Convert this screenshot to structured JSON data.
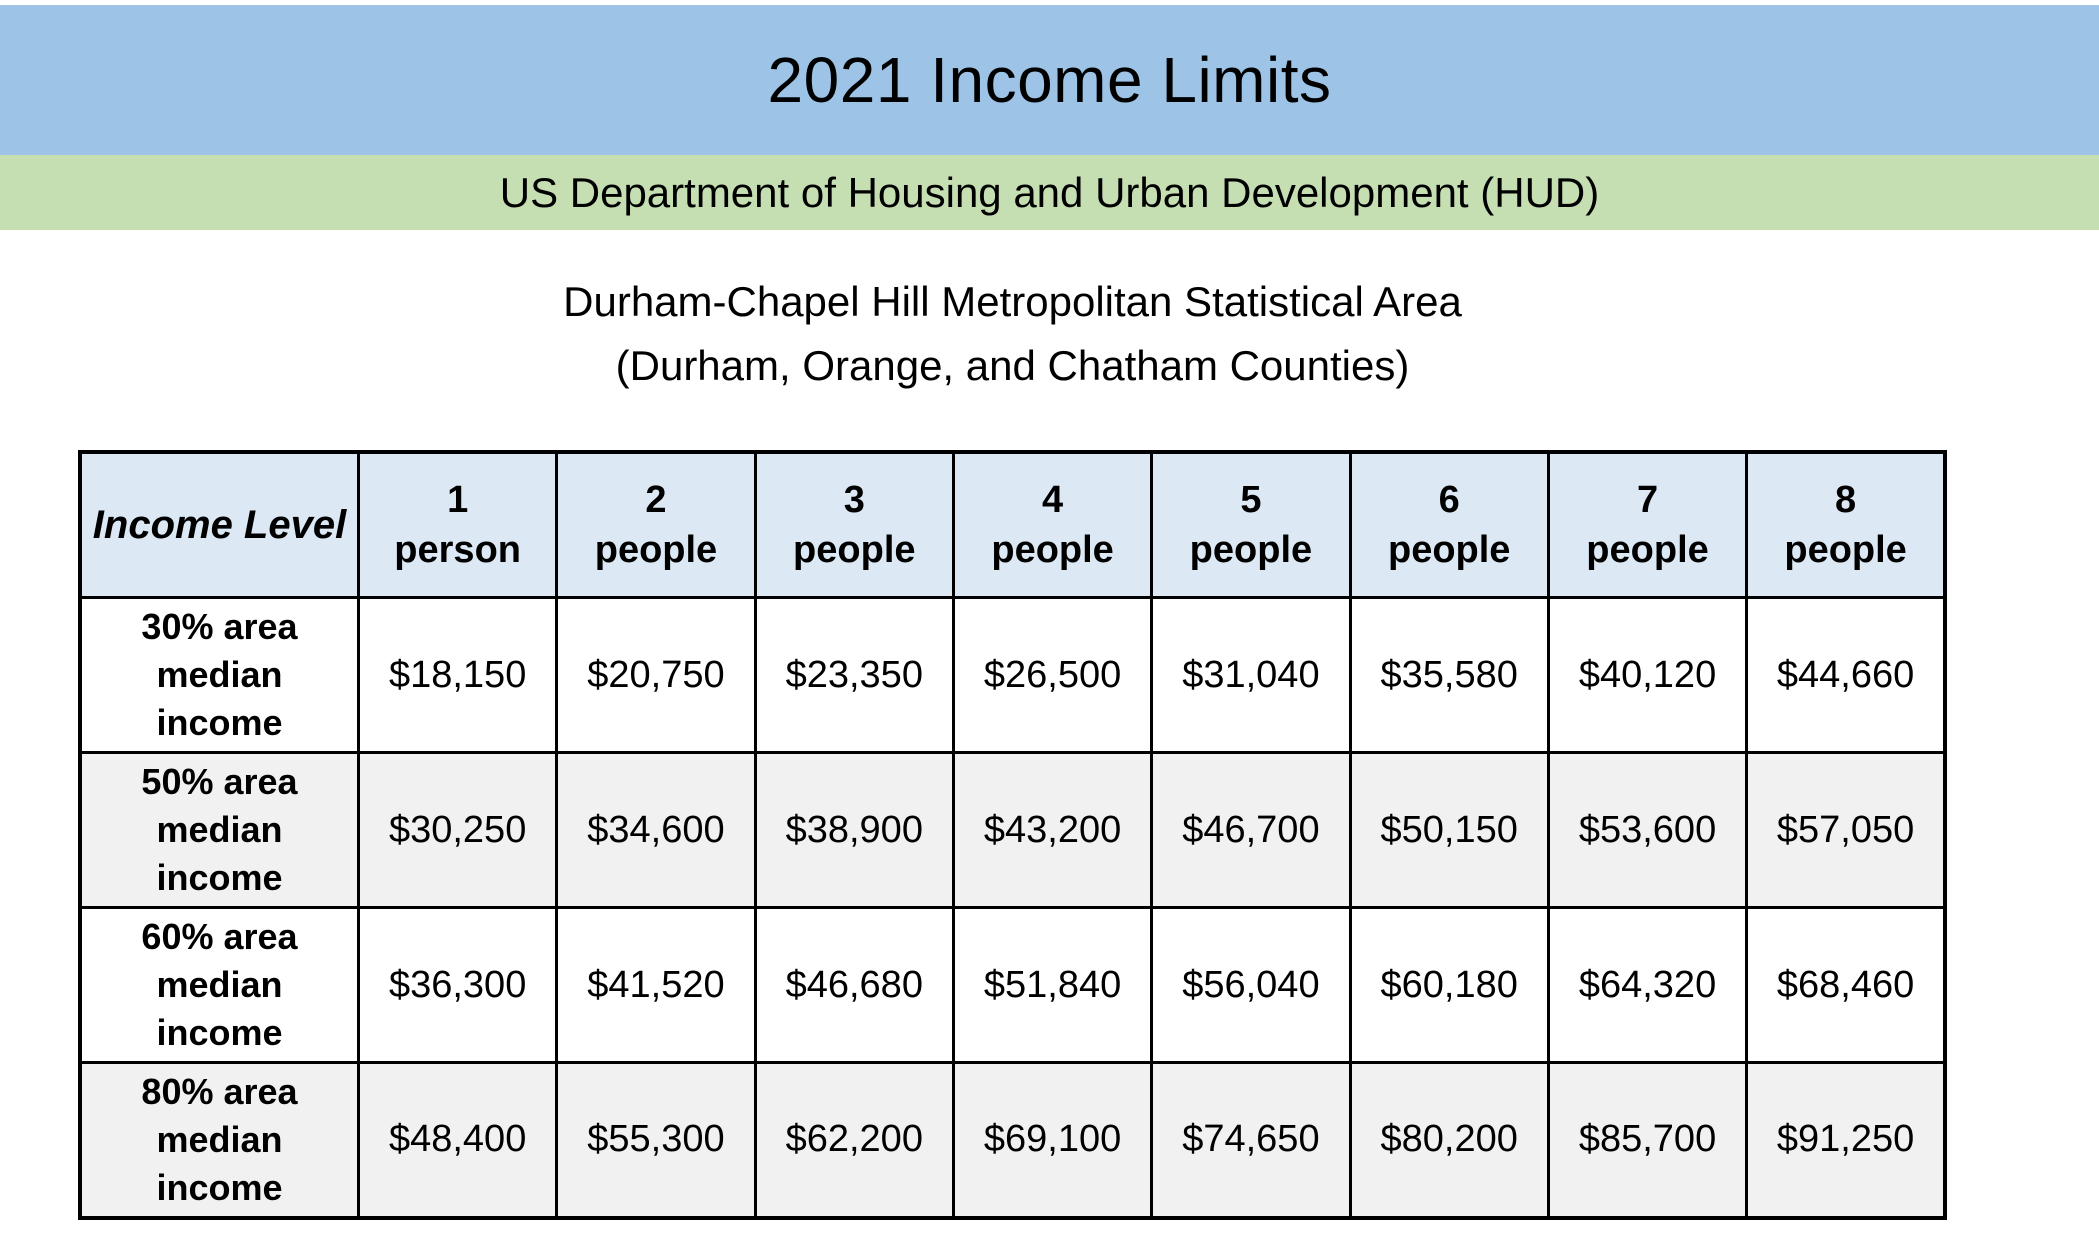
{
  "header": {
    "title": "2021 Income Limits",
    "subtitle": "US Department of Housing and Urban Development (HUD)",
    "area_line1": "Durham-Chapel Hill Metropolitan Statistical Area",
    "area_line2": "(Durham, Orange, and Chatham Counties)"
  },
  "colors": {
    "title_band_bg": "#9DC3E6",
    "subtitle_band_bg": "#C5DFB3",
    "table_header_bg": "#DCE9F5",
    "row_alt_bg": "#F1F1F1",
    "border": "#000000",
    "text": "#000000"
  },
  "table": {
    "corner_label": "Income Level",
    "columns": [
      "1\nperson",
      "2\npeople",
      "3\npeople",
      "4\npeople",
      "5\npeople",
      "6\npeople",
      "7\npeople",
      "8\npeople"
    ],
    "rows": [
      {
        "label": "30% area\nmedian\nincome",
        "values": [
          "$18,150",
          "$20,750",
          "$23,350",
          "$26,500",
          "$31,040",
          "$35,580",
          "$40,120",
          "$44,660"
        ]
      },
      {
        "label": "50% area\nmedian\nincome",
        "values": [
          "$30,250",
          "$34,600",
          "$38,900",
          "$43,200",
          "$46,700",
          "$50,150",
          "$53,600",
          "$57,050"
        ]
      },
      {
        "label": "60% area\nmedian\nincome",
        "values": [
          "$36,300",
          "$41,520",
          "$46,680",
          "$51,840",
          "$56,040",
          "$60,180",
          "$64,320",
          "$68,460"
        ]
      },
      {
        "label": "80% area\nmedian\nincome",
        "values": [
          "$48,400",
          "$55,300",
          "$62,200",
          "$69,100",
          "$74,650",
          "$80,200",
          "$85,700",
          "$91,250"
        ]
      }
    ]
  }
}
